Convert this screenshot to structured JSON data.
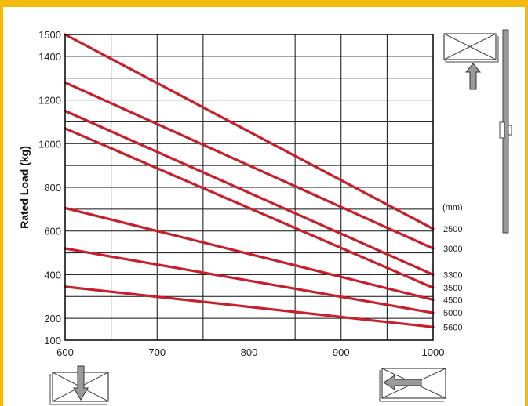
{
  "chart_data": {
    "type": "line",
    "xlabel": "",
    "ylabel": "Rated Load (kg)",
    "xlim": [
      600,
      1000
    ],
    "ylim": [
      100,
      1500
    ],
    "xticks": [
      600,
      700,
      800,
      900,
      1000
    ],
    "yticks": [
      100,
      200,
      400,
      600,
      800,
      1000,
      1200,
      1400,
      1500
    ],
    "x_grid_step": 50,
    "y_grid_step": 100,
    "grid": true,
    "legend_unit": "(mm)",
    "legend_position": "right",
    "line_color": "#C8202B",
    "series": [
      {
        "name": "2500",
        "x": [
          600,
          1000
        ],
        "values": [
          1500,
          610
        ]
      },
      {
        "name": "3000",
        "x": [
          600,
          1000
        ],
        "values": [
          1280,
          520
        ]
      },
      {
        "name": "3300",
        "x": [
          600,
          1000
        ],
        "values": [
          1150,
          400
        ]
      },
      {
        "name": "3500",
        "x": [
          600,
          1000
        ],
        "values": [
          1070,
          340
        ]
      },
      {
        "name": "4500",
        "x": [
          600,
          1000
        ],
        "values": [
          705,
          285
        ]
      },
      {
        "name": "5000",
        "x": [
          600,
          1000
        ],
        "values": [
          520,
          225
        ]
      },
      {
        "name": "5600",
        "x": [
          600,
          1000
        ],
        "values": [
          345,
          160
        ]
      }
    ]
  },
  "icons": {
    "top_right": "box-lift-up-icon",
    "bottom_left": "box-push-down-icon",
    "bottom_right": "box-push-left-icon",
    "mast": "mast-icon"
  },
  "colors": {
    "frame": "#F2B90F",
    "line": "#C8202B",
    "grid": "#111111",
    "icon_fill": "#9a9a9a"
  }
}
